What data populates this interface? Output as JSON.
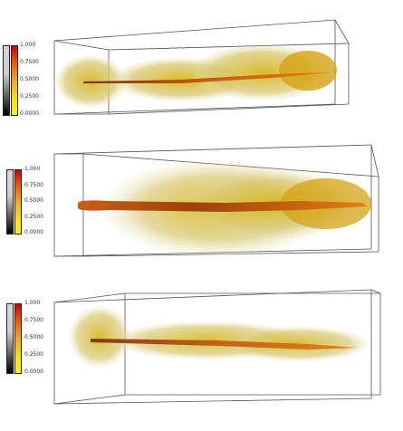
{
  "legend": {
    "ticks": [
      "1.000",
      "0.7500",
      "0.5000",
      "0.2500",
      "0.0000"
    ],
    "colors": {
      "high": "#d10000",
      "upper": "#f25a0a",
      "mid": "#f7a81e",
      "low": "#ffe600",
      "opacity_dark": "#000000",
      "opacity_light": "#d8d8d8"
    }
  },
  "plume_colors": {
    "haze": "#d9c873",
    "body": "#d7b71c",
    "core": "#c4570a",
    "edge": "#7a2a05"
  },
  "panels": [
    {
      "id": "top"
    },
    {
      "id": "middle"
    },
    {
      "id": "bottom"
    }
  ]
}
